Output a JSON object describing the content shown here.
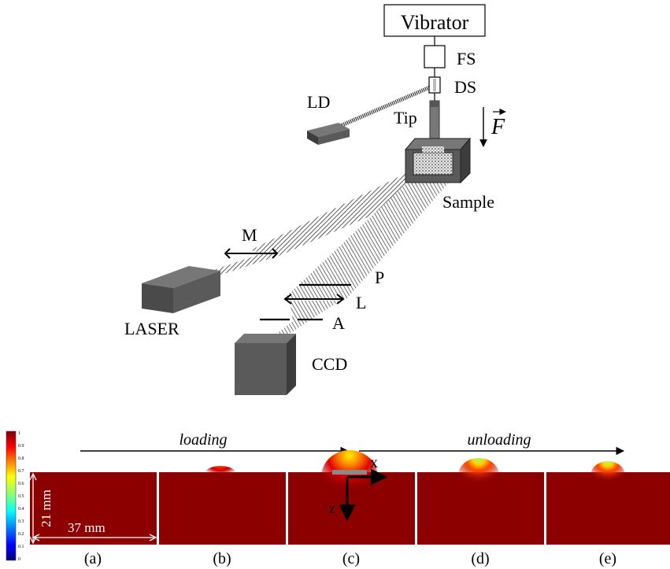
{
  "setup": {
    "vibrator": "Vibrator",
    "fs": "FS",
    "ds": "DS",
    "tip": "Tip",
    "force": "F",
    "ld": "LD",
    "sample": "Sample",
    "mirror": "M",
    "laser": "LASER",
    "polarizer": "P",
    "lens": "L",
    "aperture": "A",
    "ccd": "CCD"
  },
  "sequence": {
    "loading": "loading",
    "unloading": "unloading"
  },
  "colorbar": {
    "ticks": [
      "1",
      "0.9",
      "0.8",
      "0.7",
      "0.6",
      "0.5",
      "0.4",
      "0.3",
      "0.2",
      "0.1",
      "0"
    ]
  },
  "panels": {
    "height_label": "21 mm",
    "width_label": "37 mm",
    "axis_x": "x",
    "axis_z": "z",
    "labels": [
      "(a)",
      "(b)",
      "(c)",
      "(d)",
      "(e)"
    ]
  },
  "colors": {
    "map_background": "#8c0000",
    "box_gray": "#5a5a5a",
    "box_gray_dark": "#3c3c3c",
    "box_gray_light": "#777777"
  }
}
